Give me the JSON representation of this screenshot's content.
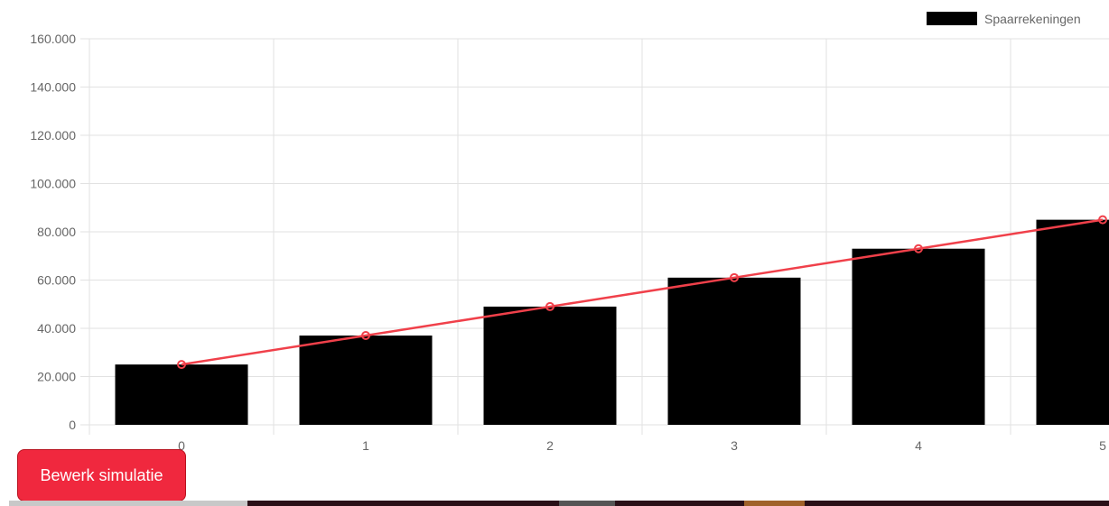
{
  "chart_data": {
    "type": "bar",
    "categories": [
      "0",
      "1",
      "2",
      "3",
      "4",
      "5"
    ],
    "series": [
      {
        "name": "Spaarrekeningen",
        "type": "bar",
        "values": [
          25000,
          37000,
          49000,
          61000,
          73000,
          85000
        ],
        "color": "#000000"
      },
      {
        "name": "",
        "type": "line",
        "values": [
          25000,
          37000,
          49000,
          61000,
          73000,
          85000
        ],
        "color": "#f0404a"
      }
    ],
    "y_ticks": [
      "0",
      "20.000",
      "40.000",
      "60.000",
      "80.000",
      "100.000",
      "120.000",
      "140.000",
      "160.000"
    ],
    "ylim": [
      0,
      160000
    ],
    "grid": true,
    "legend_position": "top-right",
    "title": "",
    "xlabel": "",
    "ylabel": ""
  },
  "actions": {
    "edit_label": "Bewerk simulatie"
  },
  "colors": {
    "button": "#f0283e",
    "grid": "#e2e2e2",
    "line": "#f0404a",
    "bar": "#000000"
  }
}
